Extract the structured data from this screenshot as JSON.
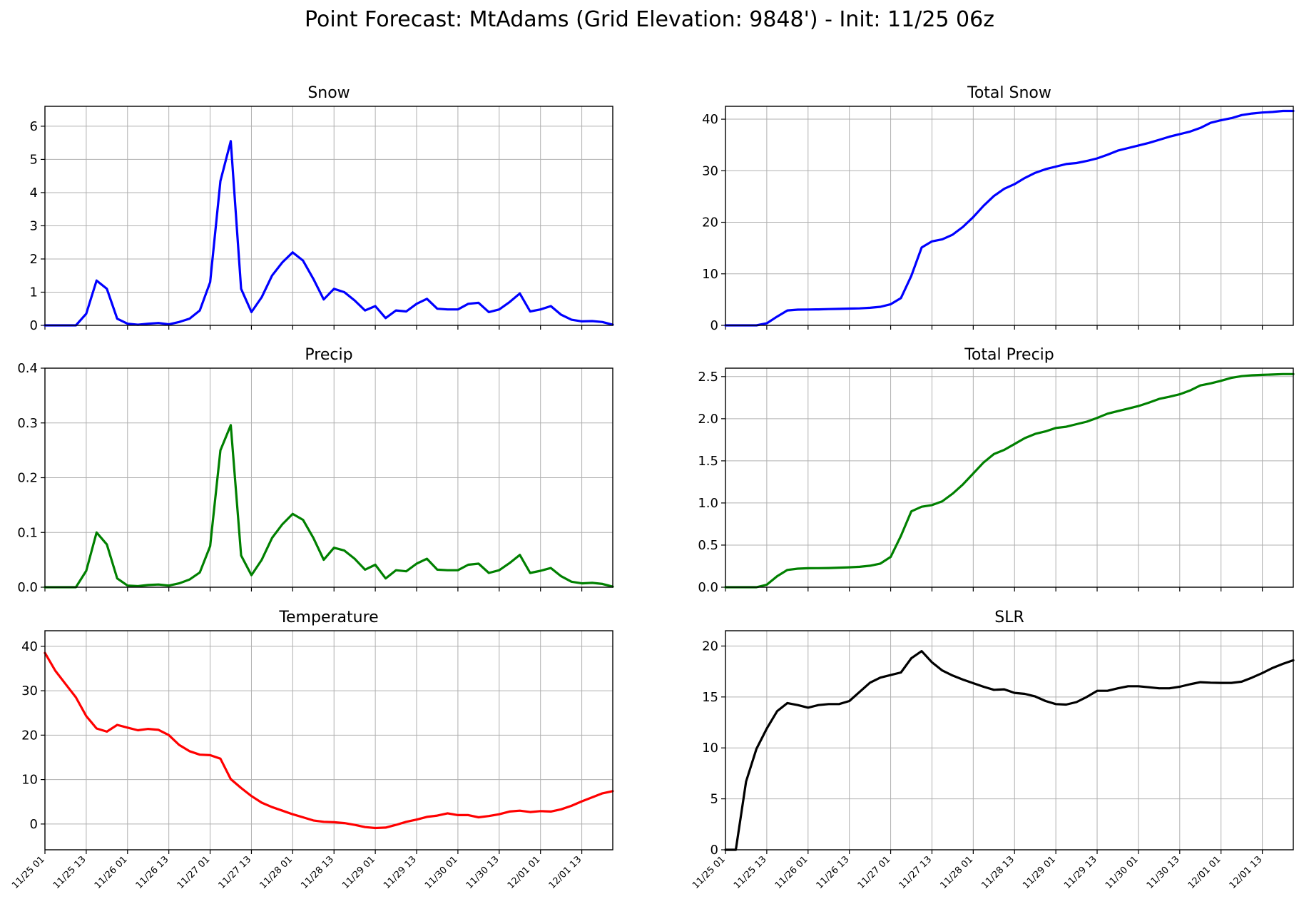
{
  "figure": {
    "title": "Point Forecast: MtAdams (Grid Elevation: 9848') - Init: 11/25 06z"
  },
  "x_tick_labels": [
    "11/25 01",
    "11/25 13",
    "11/26 01",
    "11/26 13",
    "11/27 01",
    "11/27 13",
    "11/28 01",
    "11/28 13",
    "11/29 01",
    "11/29 13",
    "11/30 01",
    "11/30 13",
    "12/01 01",
    "12/01 13"
  ],
  "chart_data": [
    {
      "type": "line",
      "title": "Snow",
      "color": "#0000ff",
      "ylim": [
        0,
        6.6
      ],
      "yticks": [
        0,
        1,
        2,
        3,
        4,
        5,
        6
      ],
      "ytick_labels": [
        "0",
        "1",
        "2",
        "3",
        "4",
        "5",
        "6"
      ],
      "x_hours": [
        0,
        3,
        6,
        9,
        12,
        15,
        18,
        21,
        24,
        27,
        30,
        33,
        36,
        39,
        42,
        45,
        48,
        51,
        54,
        57,
        60,
        63,
        66,
        69,
        72,
        75,
        78,
        81,
        84,
        87,
        90,
        93,
        96,
        99,
        102,
        105,
        108,
        111,
        114,
        117,
        120,
        123,
        126,
        129,
        132,
        135,
        138,
        141,
        144,
        147,
        150,
        153,
        156,
        159,
        162,
        165
      ],
      "values": [
        0,
        0,
        0,
        0,
        0.35,
        1.35,
        1.1,
        0.2,
        0.05,
        0.02,
        0.05,
        0.07,
        0.03,
        0.1,
        0.2,
        0.45,
        1.3,
        4.35,
        5.55,
        1.1,
        0.4,
        0.85,
        1.5,
        1.9,
        2.2,
        1.95,
        1.4,
        0.78,
        1.1,
        1.0,
        0.75,
        0.45,
        0.58,
        0.22,
        0.45,
        0.42,
        0.65,
        0.8,
        0.5,
        0.48,
        0.48,
        0.65,
        0.68,
        0.4,
        0.48,
        0.7,
        0.96,
        0.42,
        0.48,
        0.58,
        0.32,
        0.17,
        0.12,
        0.13,
        0.1,
        0.02
      ]
    },
    {
      "type": "line",
      "title": "Total Snow",
      "color": "#0000ff",
      "ylim": [
        0,
        42.5
      ],
      "yticks": [
        0,
        10,
        20,
        30,
        40
      ],
      "ytick_labels": [
        "0",
        "10",
        "20",
        "30",
        "40"
      ],
      "x_hours": [
        0,
        3,
        6,
        9,
        12,
        15,
        18,
        21,
        24,
        27,
        30,
        33,
        36,
        39,
        42,
        45,
        48,
        51,
        54,
        57,
        60,
        63,
        66,
        69,
        72,
        75,
        78,
        81,
        84,
        87,
        90,
        93,
        96,
        99,
        102,
        105,
        108,
        111,
        114,
        117,
        120,
        123,
        126,
        129,
        132,
        135,
        138,
        141,
        144,
        147,
        150,
        153,
        156,
        159,
        162,
        165
      ],
      "values": [
        0,
        0,
        0,
        0,
        0.4,
        1.7,
        2.9,
        3.05,
        3.08,
        3.1,
        3.15,
        3.2,
        3.25,
        3.3,
        3.4,
        3.6,
        4.1,
        5.3,
        9.6,
        15.1,
        16.3,
        16.7,
        17.6,
        19.1,
        21.0,
        23.2,
        25.1,
        26.5,
        27.4,
        28.6,
        29.6,
        30.3,
        30.8,
        31.3,
        31.5,
        31.9,
        32.4,
        33.1,
        33.9,
        34.4,
        34.9,
        35.4,
        36.0,
        36.6,
        37.1,
        37.6,
        38.3,
        39.3,
        39.8,
        40.2,
        40.8,
        41.1,
        41.3,
        41.4,
        41.6,
        41.6
      ]
    },
    {
      "type": "line",
      "title": "Precip",
      "color": "#008000",
      "ylim": [
        0,
        0.4
      ],
      "yticks": [
        0,
        0.1,
        0.2,
        0.3,
        0.4
      ],
      "ytick_labels": [
        "0.0",
        "0.1",
        "0.2",
        "0.3",
        "0.4"
      ],
      "x_hours": [
        0,
        3,
        6,
        9,
        12,
        15,
        18,
        21,
        24,
        27,
        30,
        33,
        36,
        39,
        42,
        45,
        48,
        51,
        54,
        57,
        60,
        63,
        66,
        69,
        72,
        75,
        78,
        81,
        84,
        87,
        90,
        93,
        96,
        99,
        102,
        105,
        108,
        111,
        114,
        117,
        120,
        123,
        126,
        129,
        132,
        135,
        138,
        141,
        144,
        147,
        150,
        153,
        156,
        159,
        162,
        165
      ],
      "values": [
        0,
        0,
        0,
        0,
        0.03,
        0.1,
        0.078,
        0.016,
        0.003,
        0.002,
        0.004,
        0.005,
        0.003,
        0.007,
        0.014,
        0.027,
        0.075,
        0.25,
        0.296,
        0.058,
        0.022,
        0.05,
        0.09,
        0.115,
        0.134,
        0.123,
        0.09,
        0.05,
        0.072,
        0.067,
        0.052,
        0.032,
        0.041,
        0.016,
        0.031,
        0.029,
        0.043,
        0.052,
        0.032,
        0.031,
        0.031,
        0.041,
        0.043,
        0.026,
        0.031,
        0.044,
        0.059,
        0.026,
        0.03,
        0.035,
        0.02,
        0.01,
        0.007,
        0.008,
        0.006,
        0.001
      ]
    },
    {
      "type": "line",
      "title": "Total Precip",
      "color": "#008000",
      "ylim": [
        0,
        2.6
      ],
      "yticks": [
        0,
        0.5,
        1.0,
        1.5,
        2.0,
        2.5
      ],
      "ytick_labels": [
        "0.0",
        "0.5",
        "1.0",
        "1.5",
        "2.0",
        "2.5"
      ],
      "x_hours": [
        0,
        3,
        6,
        9,
        12,
        15,
        18,
        21,
        24,
        27,
        30,
        33,
        36,
        39,
        42,
        45,
        48,
        51,
        54,
        57,
        60,
        63,
        66,
        69,
        72,
        75,
        78,
        81,
        84,
        87,
        90,
        93,
        96,
        99,
        102,
        105,
        108,
        111,
        114,
        117,
        120,
        123,
        126,
        129,
        132,
        135,
        138,
        141,
        144,
        147,
        150,
        153,
        156,
        159,
        162,
        165
      ],
      "values": [
        0,
        0,
        0,
        0,
        0.03,
        0.13,
        0.205,
        0.22,
        0.225,
        0.226,
        0.228,
        0.232,
        0.236,
        0.242,
        0.255,
        0.28,
        0.36,
        0.61,
        0.9,
        0.955,
        0.975,
        1.02,
        1.11,
        1.22,
        1.35,
        1.48,
        1.58,
        1.63,
        1.7,
        1.77,
        1.82,
        1.85,
        1.89,
        1.905,
        1.935,
        1.965,
        2.01,
        2.06,
        2.09,
        2.12,
        2.15,
        2.19,
        2.235,
        2.26,
        2.29,
        2.335,
        2.395,
        2.42,
        2.45,
        2.485,
        2.505,
        2.515,
        2.52,
        2.525,
        2.53,
        2.53
      ]
    },
    {
      "type": "line",
      "title": "Temperature",
      "color": "#ff0000",
      "ylim": [
        -5.8,
        43.5
      ],
      "yticks": [
        0,
        10,
        20,
        30,
        40
      ],
      "ytick_labels": [
        "0",
        "10",
        "20",
        "30",
        "40"
      ],
      "x_hours": [
        0,
        3,
        6,
        9,
        12,
        15,
        18,
        21,
        24,
        27,
        30,
        33,
        36,
        39,
        42,
        45,
        48,
        51,
        54,
        57,
        60,
        63,
        66,
        69,
        72,
        75,
        78,
        81,
        84,
        87,
        90,
        93,
        96,
        99,
        102,
        105,
        108,
        111,
        114,
        117,
        120,
        123,
        126,
        129,
        132,
        135,
        138,
        141,
        144,
        147,
        150,
        153,
        156,
        159,
        162,
        165
      ],
      "values": [
        38.5,
        34.5,
        31.5,
        28.5,
        24.3,
        21.5,
        20.8,
        22.3,
        21.7,
        21.1,
        21.4,
        21.2,
        20.0,
        17.8,
        16.4,
        15.6,
        15.5,
        14.7,
        10.1,
        8.1,
        6.3,
        4.8,
        3.8,
        3.0,
        2.2,
        1.5,
        0.8,
        0.5,
        0.4,
        0.2,
        -0.2,
        -0.7,
        -0.9,
        -0.8,
        -0.2,
        0.5,
        1.0,
        1.6,
        1.9,
        2.4,
        2.0,
        2.0,
        1.5,
        1.8,
        2.2,
        2.8,
        3.0,
        2.7,
        2.9,
        2.8,
        3.3,
        4.1,
        5.1,
        6.0,
        6.9,
        7.4
      ]
    },
    {
      "type": "line",
      "title": "SLR",
      "color": "#000000",
      "ylim": [
        0,
        21.5
      ],
      "yticks": [
        0,
        5,
        10,
        15,
        20
      ],
      "ytick_labels": [
        "0",
        "5",
        "10",
        "15",
        "20"
      ],
      "x_hours": [
        0,
        3,
        6,
        9,
        12,
        15,
        18,
        21,
        24,
        27,
        30,
        33,
        36,
        39,
        42,
        45,
        48,
        51,
        54,
        57,
        60,
        63,
        66,
        69,
        72,
        75,
        78,
        81,
        84,
        87,
        90,
        93,
        96,
        99,
        102,
        105,
        108,
        111,
        114,
        117,
        120,
        123,
        126,
        129,
        132,
        135,
        138,
        141,
        144,
        147,
        150,
        153,
        156,
        159,
        162,
        165
      ],
      "values": [
        0,
        0,
        6.7,
        9.9,
        11.9,
        13.6,
        14.4,
        14.2,
        13.95,
        14.2,
        14.3,
        14.3,
        14.6,
        15.5,
        16.4,
        16.9,
        17.15,
        17.4,
        18.8,
        19.5,
        18.4,
        17.6,
        17.1,
        16.7,
        16.35,
        16.0,
        15.7,
        15.75,
        15.4,
        15.3,
        15.05,
        14.6,
        14.3,
        14.25,
        14.5,
        15.0,
        15.6,
        15.6,
        15.85,
        16.05,
        16.05,
        15.95,
        15.85,
        15.85,
        16.0,
        16.25,
        16.45,
        16.4,
        16.38,
        16.38,
        16.5,
        16.9,
        17.35,
        17.85,
        18.25,
        18.6
      ]
    }
  ]
}
